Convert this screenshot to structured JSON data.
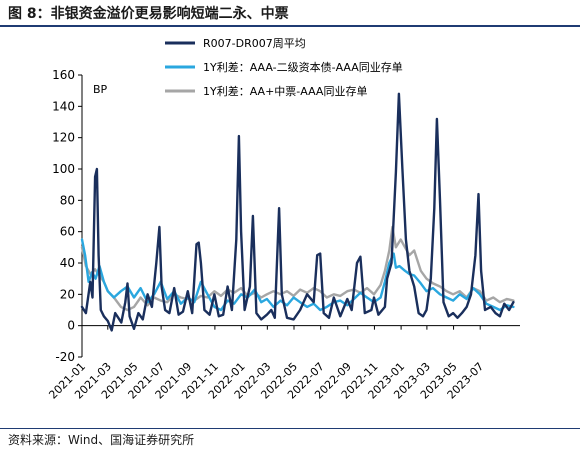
{
  "figure": {
    "title": "图 8：非银资金溢价更易影响短端二永、中票",
    "source": "资料来源：Wind、国海证券研究所"
  },
  "chart_data": {
    "type": "line",
    "ylabel": "BP",
    "ylim": [
      -20,
      160
    ],
    "yticks": [
      -20,
      0,
      20,
      40,
      60,
      80,
      100,
      120,
      140,
      160
    ],
    "xlim": [
      "2021-01-01",
      "2023-09-30"
    ],
    "xticks": [
      "2021-01",
      "2021-03",
      "2021-05",
      "2021-07",
      "2021-09",
      "2021-11",
      "2022-01",
      "2022-03",
      "2022-05",
      "2022-07",
      "2022-09",
      "2022-11",
      "2023-01",
      "2023-03",
      "2023-05",
      "2023-07"
    ],
    "grid": false,
    "legend_position": "top",
    "series": [
      {
        "name": "R007-DR007周平均",
        "color": "#1a2f5c",
        "points": [
          [
            "2021-01-01",
            12
          ],
          [
            "2021-01-10",
            8
          ],
          [
            "2021-01-20",
            28
          ],
          [
            "2021-01-25",
            18
          ],
          [
            "2021-01-31",
            95
          ],
          [
            "2021-02-04",
            100
          ],
          [
            "2021-02-08",
            45
          ],
          [
            "2021-02-13",
            10
          ],
          [
            "2021-02-20",
            6
          ],
          [
            "2021-03-01",
            3
          ],
          [
            "2021-03-10",
            -3
          ],
          [
            "2021-03-18",
            8
          ],
          [
            "2021-03-25",
            5
          ],
          [
            "2021-04-01",
            2
          ],
          [
            "2021-04-10",
            15
          ],
          [
            "2021-04-15",
            27
          ],
          [
            "2021-04-20",
            6
          ],
          [
            "2021-04-30",
            -2
          ],
          [
            "2021-05-10",
            8
          ],
          [
            "2021-05-20",
            4
          ],
          [
            "2021-05-31",
            20
          ],
          [
            "2021-06-10",
            12
          ],
          [
            "2021-06-20",
            40
          ],
          [
            "2021-06-27",
            63
          ],
          [
            "2021-07-02",
            25
          ],
          [
            "2021-07-10",
            10
          ],
          [
            "2021-07-20",
            8
          ],
          [
            "2021-07-31",
            24
          ],
          [
            "2021-08-10",
            7
          ],
          [
            "2021-08-20",
            9
          ],
          [
            "2021-08-31",
            22
          ],
          [
            "2021-09-10",
            8
          ],
          [
            "2021-09-20",
            52
          ],
          [
            "2021-09-25",
            53
          ],
          [
            "2021-09-30",
            40
          ],
          [
            "2021-10-08",
            10
          ],
          [
            "2021-10-20",
            7
          ],
          [
            "2021-10-31",
            20
          ],
          [
            "2021-11-10",
            6
          ],
          [
            "2021-11-20",
            7
          ],
          [
            "2021-11-30",
            25
          ],
          [
            "2021-12-10",
            10
          ],
          [
            "2021-12-20",
            55
          ],
          [
            "2021-12-26",
            121
          ],
          [
            "2021-12-31",
            60
          ],
          [
            "2022-01-08",
            10
          ],
          [
            "2022-01-20",
            25
          ],
          [
            "2022-01-27",
            70
          ],
          [
            "2022-02-04",
            8
          ],
          [
            "2022-02-15",
            4
          ],
          [
            "2022-02-28",
            7
          ],
          [
            "2022-03-10",
            10
          ],
          [
            "2022-03-18",
            5
          ],
          [
            "2022-03-28",
            75
          ],
          [
            "2022-04-03",
            20
          ],
          [
            "2022-04-15",
            5
          ],
          [
            "2022-04-30",
            4
          ],
          [
            "2022-05-15",
            10
          ],
          [
            "2022-05-31",
            20
          ],
          [
            "2022-06-15",
            15
          ],
          [
            "2022-06-23",
            45
          ],
          [
            "2022-06-30",
            46
          ],
          [
            "2022-07-08",
            8
          ],
          [
            "2022-07-20",
            5
          ],
          [
            "2022-07-31",
            18
          ],
          [
            "2022-08-15",
            6
          ],
          [
            "2022-08-31",
            17
          ],
          [
            "2022-09-10",
            10
          ],
          [
            "2022-09-22",
            40
          ],
          [
            "2022-09-30",
            44
          ],
          [
            "2022-10-10",
            8
          ],
          [
            "2022-10-25",
            10
          ],
          [
            "2022-10-31",
            18
          ],
          [
            "2022-11-10",
            7
          ],
          [
            "2022-11-25",
            12
          ],
          [
            "2022-11-30",
            30
          ],
          [
            "2022-12-10",
            40
          ],
          [
            "2022-12-20",
            98
          ],
          [
            "2022-12-27",
            148
          ],
          [
            "2023-01-04",
            100
          ],
          [
            "2023-01-12",
            55
          ],
          [
            "2023-01-20",
            35
          ],
          [
            "2023-01-31",
            25
          ],
          [
            "2023-02-10",
            8
          ],
          [
            "2023-02-20",
            6
          ],
          [
            "2023-02-28",
            10
          ],
          [
            "2023-03-10",
            30
          ],
          [
            "2023-03-18",
            75
          ],
          [
            "2023-03-24",
            132
          ],
          [
            "2023-03-31",
            80
          ],
          [
            "2023-04-08",
            15
          ],
          [
            "2023-04-20",
            6
          ],
          [
            "2023-04-30",
            8
          ],
          [
            "2023-05-10",
            5
          ],
          [
            "2023-05-20",
            8
          ],
          [
            "2023-05-31",
            12
          ],
          [
            "2023-06-10",
            20
          ],
          [
            "2023-06-20",
            45
          ],
          [
            "2023-06-27",
            84
          ],
          [
            "2023-07-03",
            35
          ],
          [
            "2023-07-12",
            10
          ],
          [
            "2023-07-25",
            12
          ],
          [
            "2023-08-05",
            8
          ],
          [
            "2023-08-15",
            6
          ],
          [
            "2023-08-25",
            14
          ],
          [
            "2023-09-05",
            10
          ],
          [
            "2023-09-15",
            15
          ]
        ]
      },
      {
        "name": "1Y利差：AAA-二级资本债-AAA同业存单",
        "color": "#2aa7df",
        "points": [
          [
            "2021-01-01",
            55
          ],
          [
            "2021-01-08",
            45
          ],
          [
            "2021-01-16",
            28
          ],
          [
            "2021-01-24",
            34
          ],
          [
            "2021-02-01",
            30
          ],
          [
            "2021-02-10",
            38
          ],
          [
            "2021-02-20",
            28
          ],
          [
            "2021-03-01",
            22
          ],
          [
            "2021-03-15",
            18
          ],
          [
            "2021-03-31",
            22
          ],
          [
            "2021-04-15",
            25
          ],
          [
            "2021-04-30",
            18
          ],
          [
            "2021-05-15",
            24
          ],
          [
            "2021-05-31",
            15
          ],
          [
            "2021-06-15",
            20
          ],
          [
            "2021-06-30",
            28
          ],
          [
            "2021-07-15",
            17
          ],
          [
            "2021-07-31",
            22
          ],
          [
            "2021-08-15",
            14
          ],
          [
            "2021-08-31",
            18
          ],
          [
            "2021-09-15",
            15
          ],
          [
            "2021-09-30",
            28
          ],
          [
            "2021-10-15",
            20
          ],
          [
            "2021-10-31",
            12
          ],
          [
            "2021-11-15",
            10
          ],
          [
            "2021-11-30",
            16
          ],
          [
            "2021-12-15",
            14
          ],
          [
            "2021-12-31",
            20
          ],
          [
            "2022-01-15",
            18
          ],
          [
            "2022-01-31",
            23
          ],
          [
            "2022-02-15",
            15
          ],
          [
            "2022-02-28",
            17
          ],
          [
            "2022-03-15",
            12
          ],
          [
            "2022-03-31",
            16
          ],
          [
            "2022-04-15",
            13
          ],
          [
            "2022-04-30",
            18
          ],
          [
            "2022-05-15",
            15
          ],
          [
            "2022-05-31",
            12
          ],
          [
            "2022-06-15",
            14
          ],
          [
            "2022-06-30",
            10
          ],
          [
            "2022-07-15",
            12
          ],
          [
            "2022-07-31",
            15
          ],
          [
            "2022-08-15",
            16
          ],
          [
            "2022-08-31",
            13
          ],
          [
            "2022-09-15",
            17
          ],
          [
            "2022-09-30",
            21
          ],
          [
            "2022-10-15",
            18
          ],
          [
            "2022-10-31",
            15
          ],
          [
            "2022-11-15",
            18
          ],
          [
            "2022-11-25",
            28
          ],
          [
            "2022-12-05",
            40
          ],
          [
            "2022-12-15",
            46
          ],
          [
            "2022-12-20",
            37
          ],
          [
            "2022-12-28",
            38
          ],
          [
            "2023-01-10",
            35
          ],
          [
            "2023-01-20",
            33
          ],
          [
            "2023-01-31",
            32
          ],
          [
            "2023-02-15",
            27
          ],
          [
            "2023-02-28",
            22
          ],
          [
            "2023-03-15",
            24
          ],
          [
            "2023-03-31",
            20
          ],
          [
            "2023-04-15",
            18
          ],
          [
            "2023-04-30",
            16
          ],
          [
            "2023-05-15",
            20
          ],
          [
            "2023-05-31",
            17
          ],
          [
            "2023-06-15",
            24
          ],
          [
            "2023-06-30",
            20
          ],
          [
            "2023-07-15",
            14
          ],
          [
            "2023-07-31",
            12
          ],
          [
            "2023-08-15",
            10
          ],
          [
            "2023-08-31",
            13
          ],
          [
            "2023-09-15",
            12
          ]
        ]
      },
      {
        "name": "1Y利差：AA+中票-AAA同业存单",
        "color": "#a6a6a6",
        "points": [
          [
            "2021-01-01",
            50
          ],
          [
            "2021-01-10",
            38
          ],
          [
            "2021-01-20",
            33
          ],
          [
            "2021-01-31",
            36
          ],
          [
            "2021-02-10",
            32
          ],
          [
            "2021-02-20",
            28
          ],
          [
            "2021-03-01",
            22
          ],
          [
            "2021-03-15",
            18
          ],
          [
            "2021-03-31",
            12
          ],
          [
            "2021-04-15",
            10
          ],
          [
            "2021-04-30",
            12
          ],
          [
            "2021-05-15",
            18
          ],
          [
            "2021-05-31",
            13
          ],
          [
            "2021-06-15",
            18
          ],
          [
            "2021-06-30",
            16
          ],
          [
            "2021-07-15",
            15
          ],
          [
            "2021-07-31",
            20
          ],
          [
            "2021-08-15",
            18
          ],
          [
            "2021-08-31",
            17
          ],
          [
            "2021-09-15",
            16
          ],
          [
            "2021-09-30",
            19
          ],
          [
            "2021-10-15",
            18
          ],
          [
            "2021-10-31",
            22
          ],
          [
            "2021-11-15",
            19
          ],
          [
            "2021-11-30",
            23
          ],
          [
            "2021-12-15",
            21
          ],
          [
            "2021-12-31",
            24
          ],
          [
            "2022-01-15",
            19
          ],
          [
            "2022-01-31",
            21
          ],
          [
            "2022-02-15",
            18
          ],
          [
            "2022-02-28",
            20
          ],
          [
            "2022-03-15",
            22
          ],
          [
            "2022-03-31",
            20
          ],
          [
            "2022-04-15",
            22
          ],
          [
            "2022-04-30",
            19
          ],
          [
            "2022-05-15",
            23
          ],
          [
            "2022-05-31",
            21
          ],
          [
            "2022-06-15",
            24
          ],
          [
            "2022-06-30",
            22
          ],
          [
            "2022-07-15",
            18
          ],
          [
            "2022-07-31",
            20
          ],
          [
            "2022-08-15",
            19
          ],
          [
            "2022-08-31",
            22
          ],
          [
            "2022-09-15",
            23
          ],
          [
            "2022-09-30",
            21
          ],
          [
            "2022-10-15",
            24
          ],
          [
            "2022-10-31",
            20
          ],
          [
            "2022-11-15",
            26
          ],
          [
            "2022-11-25",
            35
          ],
          [
            "2022-12-05",
            48
          ],
          [
            "2022-12-12",
            63
          ],
          [
            "2022-12-20",
            50
          ],
          [
            "2022-12-31",
            55
          ],
          [
            "2023-01-10",
            50
          ],
          [
            "2023-01-20",
            45
          ],
          [
            "2023-01-31",
            48
          ],
          [
            "2023-02-15",
            35
          ],
          [
            "2023-02-28",
            30
          ],
          [
            "2023-03-15",
            27
          ],
          [
            "2023-03-31",
            25
          ],
          [
            "2023-04-15",
            22
          ],
          [
            "2023-04-30",
            20
          ],
          [
            "2023-05-15",
            22
          ],
          [
            "2023-05-31",
            18
          ],
          [
            "2023-06-15",
            24
          ],
          [
            "2023-06-30",
            22
          ],
          [
            "2023-07-15",
            16
          ],
          [
            "2023-07-31",
            18
          ],
          [
            "2023-08-15",
            15
          ],
          [
            "2023-08-31",
            17
          ],
          [
            "2023-09-15",
            16
          ]
        ]
      }
    ]
  }
}
